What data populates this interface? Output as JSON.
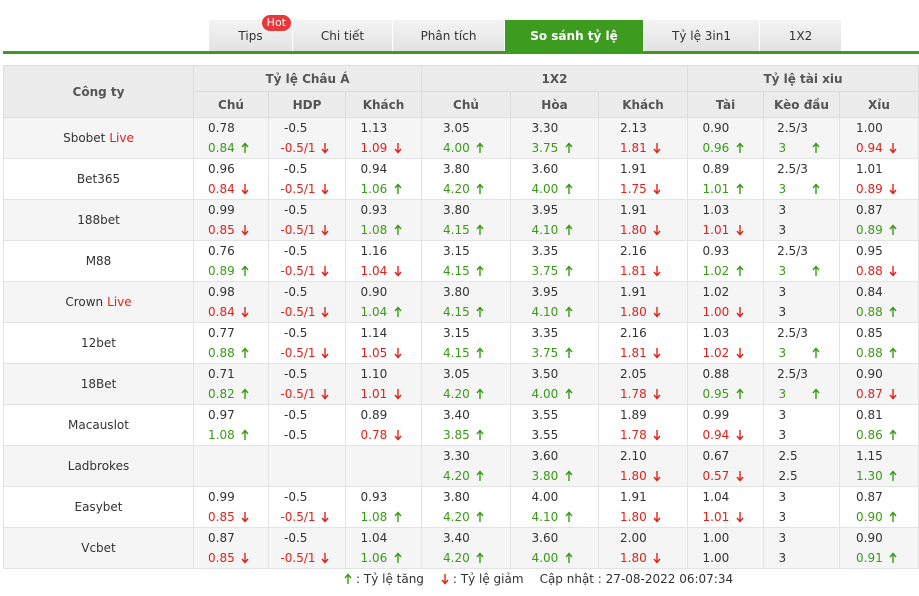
{
  "tabs": [
    {
      "label": "Tips",
      "badge": "Hot"
    },
    {
      "label": "Chi tiết"
    },
    {
      "label": "Phân tích"
    },
    {
      "label": "So sánh tỷ lệ",
      "active": true
    },
    {
      "label": "Tỷ lệ 3in1"
    },
    {
      "label": "1X2"
    }
  ],
  "table": {
    "company_header": "Công ty",
    "groups": [
      {
        "label": "Tỷ lệ Châu Á",
        "columns": [
          "Chú",
          "HDP",
          "Khách"
        ]
      },
      {
        "label": "1X2",
        "columns": [
          "Chủ",
          "Hòa",
          "Khách"
        ]
      },
      {
        "label": "Tỷ lệ tài xiu",
        "columns": [
          "Tài",
          "Kèo đầu",
          "Xỉu"
        ]
      }
    ],
    "rows": [
      {
        "name": "Sbobet",
        "live": "Live",
        "cells": [
          [
            "0.78",
            "0.84",
            "up"
          ],
          [
            "-0.5",
            "-0.5/1",
            "down"
          ],
          [
            "1.13",
            "1.09",
            "down"
          ],
          [
            "3.05",
            "4.00",
            "up"
          ],
          [
            "3.30",
            "3.75",
            "up"
          ],
          [
            "2.13",
            "1.81",
            "down"
          ],
          [
            "0.90",
            "0.96",
            "up"
          ],
          [
            "2.5/3",
            "3",
            "up"
          ],
          [
            "1.00",
            "0.94",
            "down"
          ]
        ]
      },
      {
        "name": "Bet365",
        "cells": [
          [
            "0.96",
            "0.84",
            "down"
          ],
          [
            "-0.5",
            "-0.5/1",
            "down"
          ],
          [
            "0.94",
            "1.06",
            "up"
          ],
          [
            "3.80",
            "4.20",
            "up"
          ],
          [
            "3.60",
            "4.00",
            "up"
          ],
          [
            "1.91",
            "1.75",
            "down"
          ],
          [
            "0.89",
            "1.01",
            "up"
          ],
          [
            "2.5/3",
            "3",
            "up"
          ],
          [
            "1.01",
            "0.89",
            "down"
          ]
        ]
      },
      {
        "name": "188bet",
        "cells": [
          [
            "0.99",
            "0.85",
            "down"
          ],
          [
            "-0.5",
            "-0.5/1",
            "down"
          ],
          [
            "0.93",
            "1.08",
            "up"
          ],
          [
            "3.80",
            "4.15",
            "up"
          ],
          [
            "3.95",
            "4.10",
            "up"
          ],
          [
            "1.91",
            "1.80",
            "down"
          ],
          [
            "1.03",
            "1.01",
            "down"
          ],
          [
            "3",
            "3"
          ],
          [
            "0.87",
            "0.89",
            "up"
          ]
        ]
      },
      {
        "name": "M88",
        "cells": [
          [
            "0.76",
            "0.89",
            "up"
          ],
          [
            "-0.5",
            "-0.5/1",
            "down"
          ],
          [
            "1.16",
            "1.04",
            "down"
          ],
          [
            "3.15",
            "4.15",
            "up"
          ],
          [
            "3.35",
            "3.75",
            "up"
          ],
          [
            "2.16",
            "1.81",
            "down"
          ],
          [
            "0.93",
            "1.02",
            "up"
          ],
          [
            "2.5/3",
            "3",
            "up"
          ],
          [
            "0.95",
            "0.88",
            "down"
          ]
        ]
      },
      {
        "name": "Crown",
        "live": "Live",
        "cells": [
          [
            "0.98",
            "0.84",
            "down"
          ],
          [
            "-0.5",
            "-0.5/1",
            "down"
          ],
          [
            "0.90",
            "1.04",
            "up"
          ],
          [
            "3.80",
            "4.15",
            "up"
          ],
          [
            "3.95",
            "4.10",
            "up"
          ],
          [
            "1.91",
            "1.80",
            "down"
          ],
          [
            "1.02",
            "1.00",
            "down"
          ],
          [
            "3",
            "3"
          ],
          [
            "0.84",
            "0.88",
            "up"
          ]
        ]
      },
      {
        "name": "12bet",
        "cells": [
          [
            "0.77",
            "0.88",
            "up"
          ],
          [
            "-0.5",
            "-0.5/1",
            "down"
          ],
          [
            "1.14",
            "1.05",
            "down"
          ],
          [
            "3.15",
            "4.15",
            "up"
          ],
          [
            "3.35",
            "3.75",
            "up"
          ],
          [
            "2.16",
            "1.81",
            "down"
          ],
          [
            "1.03",
            "1.02",
            "down"
          ],
          [
            "2.5/3",
            "3",
            "up"
          ],
          [
            "0.85",
            "0.88",
            "up"
          ]
        ]
      },
      {
        "name": "18Bet",
        "cells": [
          [
            "0.71",
            "0.82",
            "up"
          ],
          [
            "-0.5",
            "-0.5/1",
            "down"
          ],
          [
            "1.10",
            "1.01",
            "down"
          ],
          [
            "3.05",
            "4.20",
            "up"
          ],
          [
            "3.50",
            "4.00",
            "up"
          ],
          [
            "2.05",
            "1.78",
            "down"
          ],
          [
            "0.88",
            "0.95",
            "up"
          ],
          [
            "2.5/3",
            "3",
            "up"
          ],
          [
            "0.90",
            "0.87",
            "down"
          ]
        ]
      },
      {
        "name": "Macauslot",
        "cells": [
          [
            "0.97",
            "1.08",
            "up"
          ],
          [
            "-0.5",
            "-0.5"
          ],
          [
            "0.89",
            "0.78",
            "down"
          ],
          [
            "3.40",
            "3.85",
            "up"
          ],
          [
            "3.55",
            "3.55"
          ],
          [
            "1.89",
            "1.78",
            "down"
          ],
          [
            "0.99",
            "0.94",
            "down"
          ],
          [
            "3",
            "3"
          ],
          [
            "0.81",
            "0.86",
            "up"
          ]
        ]
      },
      {
        "name": "Ladbrokes",
        "cells": [
          null,
          null,
          null,
          [
            "3.30",
            "4.20",
            "up"
          ],
          [
            "3.60",
            "3.80",
            "up"
          ],
          [
            "2.10",
            "1.80",
            "down"
          ],
          [
            "0.67",
            "0.57",
            "down"
          ],
          [
            "2.5",
            "2.5"
          ],
          [
            "1.15",
            "1.30",
            "up"
          ]
        ]
      },
      {
        "name": "Easybet",
        "cells": [
          [
            "0.99",
            "0.85",
            "down"
          ],
          [
            "-0.5",
            "-0.5/1",
            "down"
          ],
          [
            "0.93",
            "1.08",
            "up"
          ],
          [
            "3.80",
            "4.20",
            "up"
          ],
          [
            "4.00",
            "4.10",
            "up"
          ],
          [
            "1.91",
            "1.80",
            "down"
          ],
          [
            "1.04",
            "1.01",
            "down"
          ],
          [
            "3",
            "3"
          ],
          [
            "0.87",
            "0.90",
            "up"
          ]
        ]
      },
      {
        "name": "Vcbet",
        "cells": [
          [
            "0.87",
            "0.85",
            "down"
          ],
          [
            "-0.5",
            "-0.5/1",
            "down"
          ],
          [
            "1.04",
            "1.06",
            "up"
          ],
          [
            "3.40",
            "4.20",
            "up"
          ],
          [
            "3.60",
            "4.00",
            "up"
          ],
          [
            "2.00",
            "1.80",
            "down"
          ],
          [
            "1.00",
            "1.00"
          ],
          [
            "3",
            "3"
          ],
          [
            "0.90",
            "0.91",
            "up"
          ]
        ]
      }
    ]
  },
  "legend": {
    "up": ": Tỷ lệ tăng",
    "down": ": Tỷ lệ giảm",
    "updated": "Cập nhật : 27-08-2022 06:07:34"
  }
}
